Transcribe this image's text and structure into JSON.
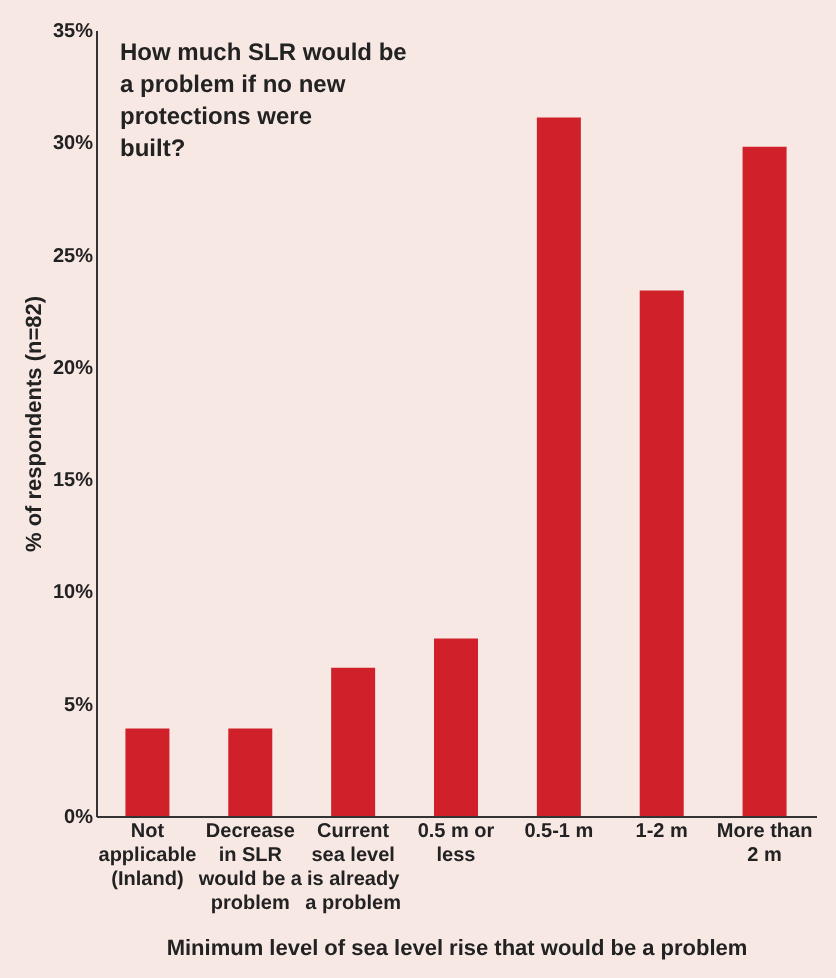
{
  "chart_data": {
    "type": "bar",
    "title": "How much SLR would be a problem if no new protections were built?",
    "xlabel": "Minimum level of sea level rise that would be a problem",
    "ylabel": "% of respondents (n=82)",
    "categories": [
      "Not applicable (Inland)",
      "Decrease in SLR would be a problem",
      "Current sea level is already a problem",
      "0.5 m or less",
      "0.5-1 m",
      "1-2 m",
      "More than 2 m"
    ],
    "values": [
      3.9,
      3.9,
      6.6,
      7.9,
      31.1,
      23.4,
      29.8
    ],
    "color": "#d0202a",
    "ylim": [
      0,
      35
    ],
    "yticks": [
      {
        "value": 0,
        "label": "0%"
      },
      {
        "value": 5,
        "label": "5%"
      },
      {
        "value": 10,
        "label": "10%"
      },
      {
        "value": 15,
        "label": "15%"
      },
      {
        "value": 20,
        "label": "20%"
      },
      {
        "value": 25,
        "label": "25%"
      },
      {
        "value": 30,
        "label": "30%"
      },
      {
        "value": 35,
        "label": "35%"
      }
    ],
    "grid": false
  }
}
